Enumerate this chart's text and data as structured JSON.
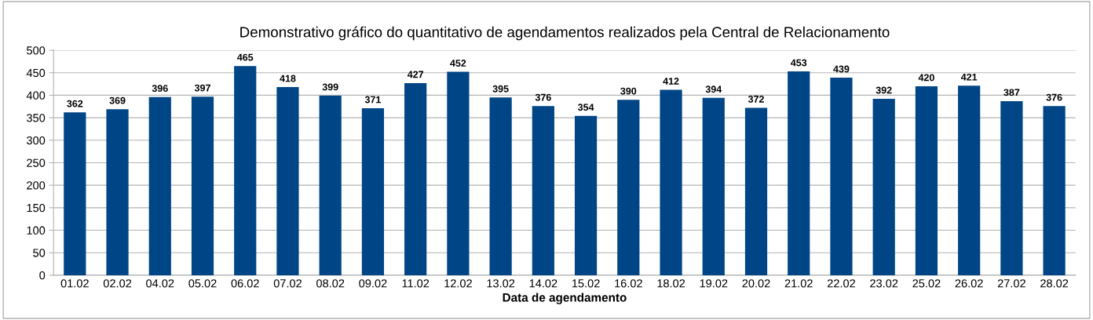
{
  "chart_data": {
    "type": "bar",
    "title": "Demonstrativo gráfico do quantitativo de agendamentos realizados pela Central de Relacionamento",
    "xlabel": "Data de agendamento",
    "categories": [
      "01.02",
      "02.02",
      "04.02",
      "05.02",
      "06.02",
      "07.02",
      "08.02",
      "09.02",
      "11.02",
      "12.02",
      "13.02",
      "14.02",
      "15.02",
      "16.02",
      "18.02",
      "19.02",
      "20.02",
      "21.02",
      "22.02",
      "23.02",
      "25.02",
      "26.02",
      "27.02",
      "28.02"
    ],
    "values": [
      362,
      369,
      396,
      397,
      465,
      418,
      399,
      371,
      427,
      452,
      395,
      376,
      354,
      390,
      412,
      394,
      372,
      453,
      439,
      392,
      420,
      421,
      387,
      376
    ],
    "color": "#004586",
    "ylim": [
      0,
      500
    ],
    "yticks": [
      0,
      50,
      100,
      150,
      200,
      250,
      300,
      350,
      400,
      450,
      500
    ],
    "grid": "y",
    "data_labels": true,
    "legend": false
  }
}
